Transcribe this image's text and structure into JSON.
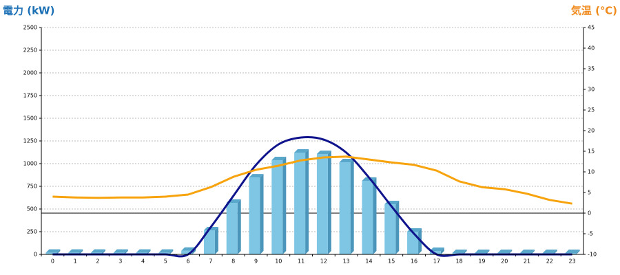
{
  "chart_data": {
    "type": "bar-line",
    "title_left": "電力 (kW)",
    "title_right": "気温 (℃)",
    "categories": [
      "0",
      "1",
      "2",
      "3",
      "4",
      "5",
      "6",
      "7",
      "8",
      "9",
      "10",
      "11",
      "12",
      "13",
      "14",
      "15",
      "16",
      "17",
      "18",
      "19",
      "20",
      "21",
      "22",
      "23"
    ],
    "series": [
      {
        "type": "bar",
        "color": "#7fc6e4",
        "values": [
          18,
          18,
          18,
          18,
          18,
          18,
          40,
          265,
          568,
          848,
          1038,
          1121,
          1106,
          1015,
          811,
          553,
          250,
          38,
          15,
          15,
          15,
          15,
          15,
          15
        ]
      },
      {
        "type": "line",
        "color": "#10148c",
        "smooth": true,
        "values": [
          0,
          0,
          0,
          0,
          0,
          0,
          0,
          300,
          644,
          985,
          1212,
          1288,
          1265,
          1121,
          848,
          530,
          227,
          0,
          0,
          0,
          0,
          0,
          0,
          0
        ]
      },
      {
        "type": "line",
        "color": "#f7a30d",
        "axis": "y2",
        "values": [
          4.0,
          3.8,
          3.7,
          3.8,
          3.8,
          4.0,
          4.5,
          6.3,
          8.8,
          10.5,
          11.5,
          12.8,
          13.5,
          13.7,
          13.0,
          12.3,
          11.7,
          10.3,
          7.7,
          6.3,
          5.8,
          4.7,
          3.2,
          2.3
        ]
      }
    ],
    "ylim": [
      0,
      2500
    ],
    "yticks": [
      0,
      250,
      500,
      750,
      1000,
      1250,
      1500,
      1750,
      2000,
      2250,
      2500
    ],
    "y2lim": [
      -10,
      45
    ],
    "y2ticks": [
      -10,
      -5,
      0,
      5,
      10,
      15,
      20,
      25,
      30,
      35,
      40,
      45
    ],
    "grid": true,
    "y2_zero_line": true
  }
}
